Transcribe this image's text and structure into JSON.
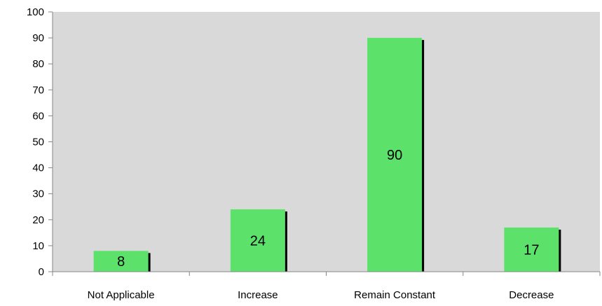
{
  "chart_data": {
    "type": "bar",
    "categories": [
      "Not Applicable",
      "Increase",
      "Remain Constant",
      "Decrease"
    ],
    "values": [
      8,
      24,
      90,
      17
    ],
    "data_labels": [
      "8",
      "24",
      "90",
      "17"
    ],
    "title": "",
    "xlabel": "",
    "ylabel": "",
    "ylim": [
      0,
      100
    ],
    "yticks": [
      0,
      10,
      20,
      30,
      40,
      50,
      60,
      70,
      80,
      90,
      100
    ],
    "grid": false,
    "legend": "none",
    "colors": {
      "bar": "#5ce26a",
      "bar_shadow": "#000000",
      "plot_background": "#d9d9d9",
      "axis": "#868686"
    }
  }
}
